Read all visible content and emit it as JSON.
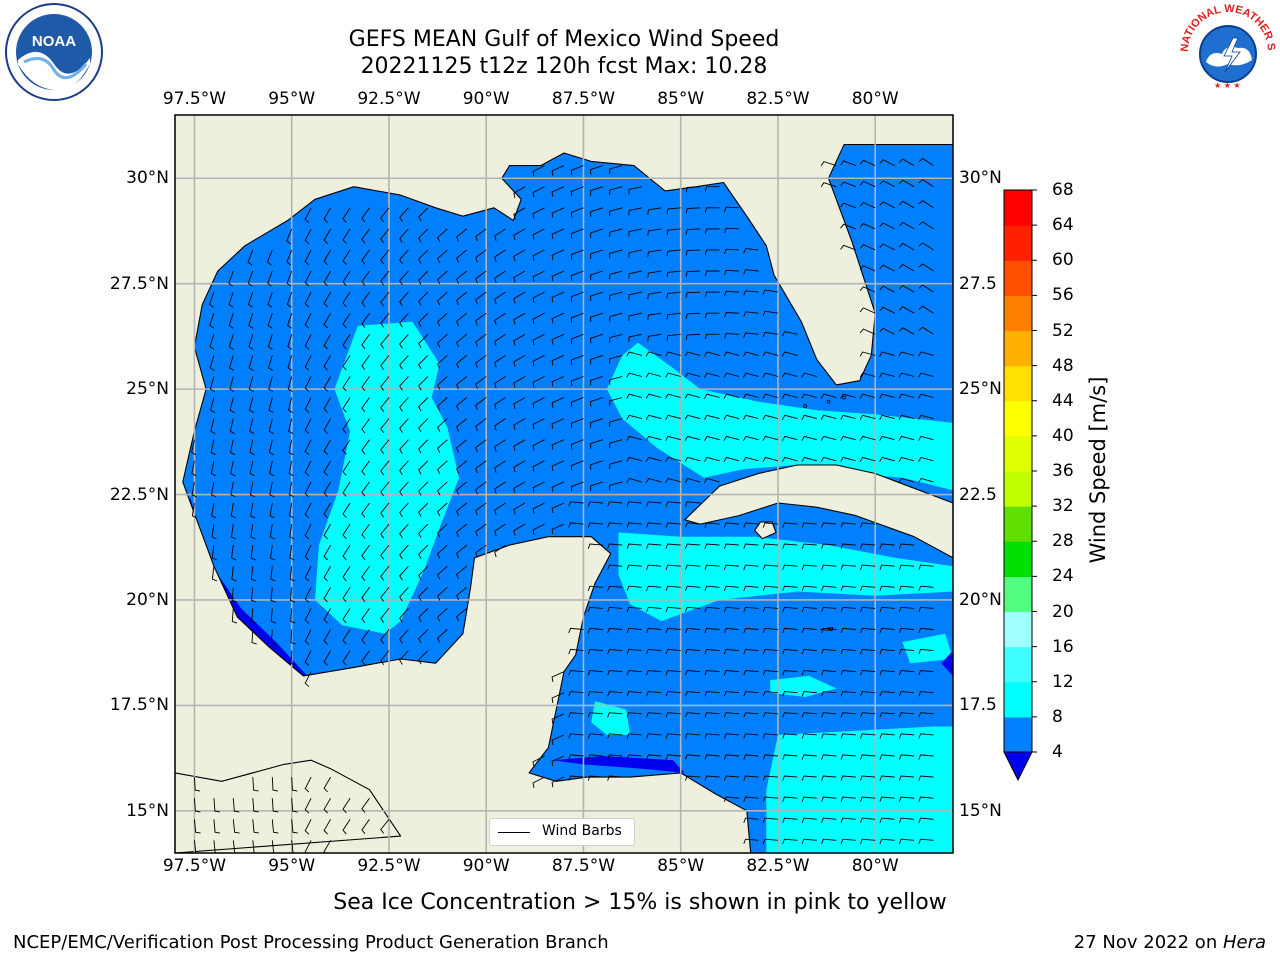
{
  "title": {
    "line1": "GEFS MEAN Gulf of Mexico Wind Speed",
    "line2": "20221125 t12z 120h fcst   Max: 10.28"
  },
  "caption": "Sea Ice Concentration > 15% is shown in pink to yellow",
  "footer": {
    "left": "NCEP/EMC/Verification Post Processing Product Generation Branch",
    "date": "27 Nov 2022 on ",
    "machine": "Hera"
  },
  "logos": {
    "noaa_text": "NOAA",
    "nws_text": "NATIONAL WEATHER SERVICE"
  },
  "legend": {
    "label": "Wind Barbs"
  },
  "lon_ticks": [
    "97.5°W",
    "95°W",
    "92.5°W",
    "90°W",
    "87.5°W",
    "85°W",
    "82.5°W",
    "80°W"
  ],
  "lat_ticks_left": [
    "30°N",
    "27.5°N",
    "25°N",
    "22.5°N",
    "20°N",
    "17.5°N",
    "15°N"
  ],
  "lat_ticks_right": [
    "30°N",
    "27.5",
    "25°N",
    "22.5",
    "20°N",
    "17.5",
    "15°N"
  ],
  "colorbar": {
    "label": "Wind Speed [m/s]",
    "ticks": [
      "4",
      "8",
      "12",
      "16",
      "20",
      "24",
      "28",
      "32",
      "36",
      "40",
      "44",
      "48",
      "52",
      "56",
      "60",
      "64",
      "68"
    ],
    "colors": [
      "#0000f0",
      "#0080ff",
      "#00ffff",
      "#40ffff",
      "#a0ffff",
      "#50ff80",
      "#00e000",
      "#60e000",
      "#c0ff00",
      "#e0ff00",
      "#ffff00",
      "#ffe000",
      "#ffb000",
      "#ff8000",
      "#ff5000",
      "#ff2000",
      "#ff0000"
    ]
  },
  "map": {
    "extent_lon": [
      -98,
      -78
    ],
    "extent_lat": [
      14,
      31.5
    ],
    "land_color": "#efefde",
    "grid_lons": [
      -97.5,
      -95,
      -92.5,
      -90,
      -87.5,
      -85,
      -82.5,
      -80
    ],
    "grid_lats": [
      30,
      27.5,
      25,
      22.5,
      20,
      17.5,
      15
    ]
  }
}
